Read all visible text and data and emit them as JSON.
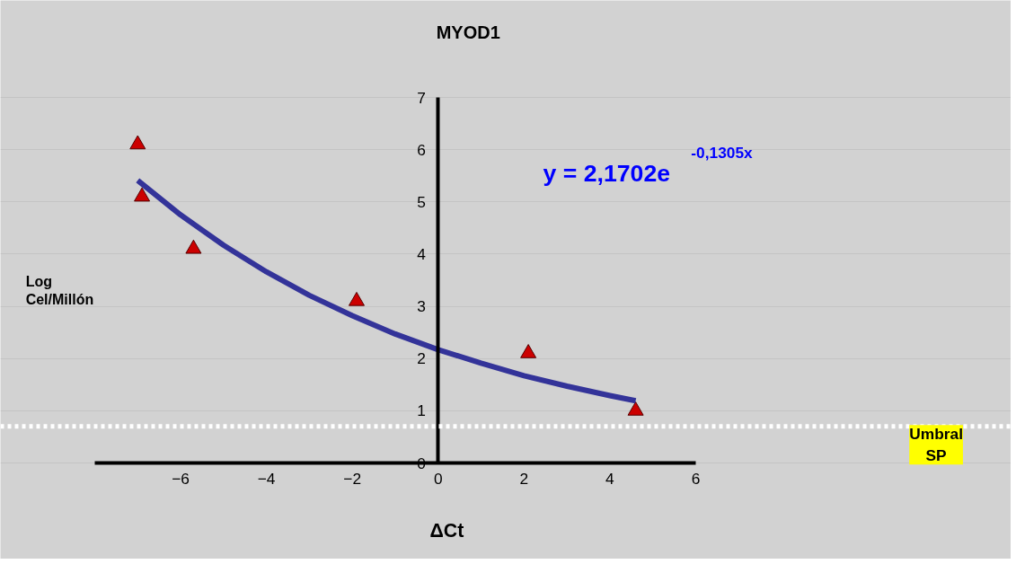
{
  "chart_data": {
    "type": "scatter",
    "title": "MYOD1",
    "xlabel": "ΔCt",
    "ylabel": "Log Cel/Millón",
    "annotations": [
      "y = 2,1702e$^{-0,1305x}$"
    ],
    "xlim": [
      -8,
      6
    ],
    "xticks": [
      -6,
      -4,
      -2,
      0,
      2,
      4,
      6
    ],
    "ylim": [
      0,
      7
    ],
    "yticks": [
      0,
      1,
      2,
      3,
      4,
      5,
      6,
      7
    ],
    "grid": "y",
    "series": [
      {
        "marker": "triangle",
        "color": "#cc0000",
        "x": [
          -7.0,
          -6.9,
          -5.7,
          -1.9,
          2.1,
          4.6
        ],
        "values": [
          6.1,
          5.1,
          4.1,
          3.1,
          2.1,
          1.0
        ]
      },
      {
        "type": "line",
        "marker": "none",
        "color": "#333399",
        "x": [
          -7,
          -6,
          -5,
          -4,
          -3,
          -2,
          -1,
          0,
          1,
          2,
          3,
          4,
          4.6
        ],
        "values": [
          5.41,
          4.75,
          4.17,
          3.66,
          3.21,
          2.82,
          2.47,
          2.17,
          1.91,
          1.67,
          1.47,
          1.29,
          1.19
        ]
      }
    ],
    "ref_lines": [
      {
        "axis": "y",
        "value": 0.7,
        "label": "Umbral SP",
        "color": "#ffffff",
        "line_style": "dotted"
      }
    ]
  }
}
